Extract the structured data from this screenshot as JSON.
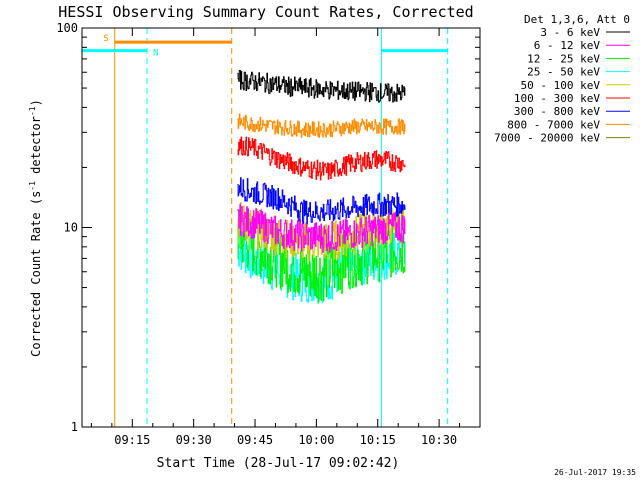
{
  "chart_data": {
    "type": "line",
    "title": "HESSI Observing Summary Count Rates, Corrected",
    "xlabel": "Start Time (28-Jul-17 09:02:42)",
    "ylabel_main": "Corrected Count Rate (s",
    "ylabel_sup1": "-1",
    "ylabel_mid": " detector",
    "ylabel_sup2": "-1",
    "ylabel_end": ")",
    "footer_date": "26-Jul-2017 19:35",
    "x_range_minutes": [
      0,
      97.3
    ],
    "ylim": [
      1,
      100
    ],
    "yscale": "log",
    "x_ticks": [
      {
        "label": "09:15",
        "minutes": 12.3
      },
      {
        "label": "09:30",
        "minutes": 27.3
      },
      {
        "label": "09:45",
        "minutes": 42.3
      },
      {
        "label": "10:00",
        "minutes": 57.3
      },
      {
        "label": "10:15",
        "minutes": 72.3
      },
      {
        "label": "10:30",
        "minutes": 87.3
      }
    ],
    "y_ticks": [
      {
        "label": "100",
        "value": 100
      },
      {
        "label": "10",
        "value": 10
      },
      {
        "label": "1",
        "value": 1
      }
    ],
    "legend": {
      "header": "Det 1,3,6, Att 0",
      "placement": "right"
    },
    "series": [
      {
        "name": "3 - 6 keV",
        "color": "#000000",
        "times": [
          38,
          45,
          50,
          55,
          60,
          65,
          70,
          75,
          79
        ],
        "values": [
          55,
          53,
          51,
          50,
          49,
          48,
          48,
          47,
          47
        ],
        "noise": 0.05
      },
      {
        "name": "6 - 12 keV",
        "color": "#ff00ff",
        "times": [
          38,
          42,
          48,
          55,
          62,
          68,
          75,
          79
        ],
        "values": [
          11,
          10.5,
          9.5,
          9,
          9,
          9.5,
          10,
          10
        ],
        "noise": 0.08
      },
      {
        "name": "12 - 25 keV",
        "color": "#00ee00",
        "times": [
          38,
          42,
          48,
          54,
          60,
          66,
          72,
          79
        ],
        "values": [
          9,
          8,
          7,
          6,
          6,
          7,
          7.5,
          8
        ],
        "noise": 0.15
      },
      {
        "name": "25 - 50 keV",
        "color": "#00ffff",
        "times": [
          38,
          42,
          48,
          54,
          60,
          66,
          72,
          79
        ],
        "values": [
          8,
          7,
          6,
          5.5,
          5.5,
          6.5,
          7,
          7.5
        ],
        "noise": 0.12
      },
      {
        "name": "50 - 100 keV",
        "color": "#cccc00",
        "times": [
          38,
          42,
          48,
          54,
          60,
          66,
          72,
          79
        ],
        "values": [
          11,
          10,
          9,
          8.5,
          8.5,
          9,
          10,
          10.5
        ],
        "noise": 0.1
      },
      {
        "name": "100 - 300 keV",
        "color": "#ff0000",
        "times": [
          38,
          42,
          48,
          54,
          60,
          66,
          72,
          79
        ],
        "values": [
          26,
          25,
          22,
          20,
          19,
          21,
          22,
          21
        ],
        "noise": 0.05
      },
      {
        "name": "300 - 800 keV",
        "color": "#0000ff",
        "times": [
          38,
          42,
          48,
          54,
          60,
          66,
          72,
          79
        ],
        "values": [
          16,
          15,
          14,
          12,
          12,
          12.5,
          13,
          13
        ],
        "noise": 0.06
      },
      {
        "name": "800 - 7000 keV",
        "color": "#ff8c00",
        "times": [
          38,
          42,
          48,
          54,
          60,
          66,
          72,
          79
        ],
        "values": [
          34,
          33,
          32,
          31,
          31,
          32,
          32,
          32
        ],
        "noise": 0.04
      },
      {
        "name": "7000 - 20000 keV",
        "color": "#808000",
        "times": [],
        "values": [],
        "noise": 0
      }
    ],
    "annotations": {
      "saa": {
        "label": "S",
        "color": "#ff8c00",
        "start_minutes": 8.0,
        "end_minutes": 36.6,
        "level": 85
      },
      "night": [
        {
          "label": "N",
          "color": "#00ffff",
          "start_minutes": 0,
          "end_minutes": 15.9,
          "level": 77
        },
        {
          "label": "",
          "color": "#00ffff",
          "start_minutes": 73.2,
          "end_minutes": 89.4,
          "level": 77
        }
      ],
      "solid_vlines": [
        {
          "minutes": 8.0,
          "color": "#ff8c00"
        },
        {
          "minutes": 73.2,
          "color": "#00ffff"
        }
      ],
      "dashed_vlines": [
        {
          "minutes": 15.9,
          "color": "#00ffff"
        },
        {
          "minutes": 36.6,
          "color": "#ff8c00"
        },
        {
          "minutes": 89.4,
          "color": "#00ffff"
        }
      ]
    }
  }
}
